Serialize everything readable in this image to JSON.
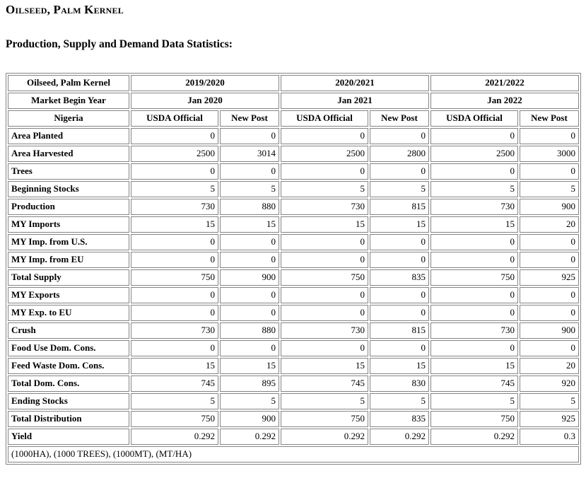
{
  "page": {
    "title": "Oilseed, Palm Kernel",
    "subtitle": "Production, Supply and Demand Data Statistics:"
  },
  "table": {
    "corner_label": "Oilseed, Palm Kernel",
    "market_begin_label": "Market Begin Year",
    "country_label": "Nigeria",
    "years": [
      "2019/2020",
      "2020/2021",
      "2021/2022"
    ],
    "begin_dates": [
      "Jan 2020",
      "Jan 2021",
      "Jan 2022"
    ],
    "column_headers": [
      "USDA Official",
      "New Post"
    ],
    "rows": [
      {
        "label": "Area Planted",
        "values": [
          "0",
          "0",
          "0",
          "0",
          "0",
          "0"
        ]
      },
      {
        "label": "Area Harvested",
        "values": [
          "2500",
          "3014",
          "2500",
          "2800",
          "2500",
          "3000"
        ]
      },
      {
        "label": "Trees",
        "values": [
          "0",
          "0",
          "0",
          "0",
          "0",
          "0"
        ]
      },
      {
        "label": "Beginning Stocks",
        "values": [
          "5",
          "5",
          "5",
          "5",
          "5",
          "5"
        ]
      },
      {
        "label": "Production",
        "values": [
          "730",
          "880",
          "730",
          "815",
          "730",
          "900"
        ]
      },
      {
        "label": "MY Imports",
        "values": [
          "15",
          "15",
          "15",
          "15",
          "15",
          "20"
        ]
      },
      {
        "label": "MY Imp. from U.S.",
        "values": [
          "0",
          "0",
          "0",
          "0",
          "0",
          "0"
        ]
      },
      {
        "label": "MY Imp. from EU",
        "values": [
          "0",
          "0",
          "0",
          "0",
          "0",
          "0"
        ]
      },
      {
        "label": "Total Supply",
        "values": [
          "750",
          "900",
          "750",
          "835",
          "750",
          "925"
        ]
      },
      {
        "label": "MY Exports",
        "values": [
          "0",
          "0",
          "0",
          "0",
          "0",
          "0"
        ]
      },
      {
        "label": "MY Exp. to EU",
        "values": [
          "0",
          "0",
          "0",
          "0",
          "0",
          "0"
        ]
      },
      {
        "label": "Crush",
        "values": [
          "730",
          "880",
          "730",
          "815",
          "730",
          "900"
        ]
      },
      {
        "label": "Food Use Dom. Cons.",
        "values": [
          "0",
          "0",
          "0",
          "0",
          "0",
          "0"
        ]
      },
      {
        "label": "Feed Waste Dom. Cons.",
        "values": [
          "15",
          "15",
          "15",
          "15",
          "15",
          "20"
        ]
      },
      {
        "label": "Total Dom. Cons.",
        "values": [
          "745",
          "895",
          "745",
          "830",
          "745",
          "920"
        ]
      },
      {
        "label": "Ending Stocks",
        "values": [
          "5",
          "5",
          "5",
          "5",
          "5",
          "5"
        ]
      },
      {
        "label": "Total Distribution",
        "values": [
          "750",
          "900",
          "750",
          "835",
          "750",
          "925"
        ]
      },
      {
        "label": "Yield",
        "values": [
          "0.292",
          "0.292",
          "0.292",
          "0.292",
          "0.292",
          "0.3"
        ]
      }
    ],
    "footnote": "(1000HA), (1000 TREES), (1000MT), (MT/HA)",
    "colors": {
      "border": "#848484",
      "text": "#000000",
      "background": "#ffffff"
    }
  }
}
